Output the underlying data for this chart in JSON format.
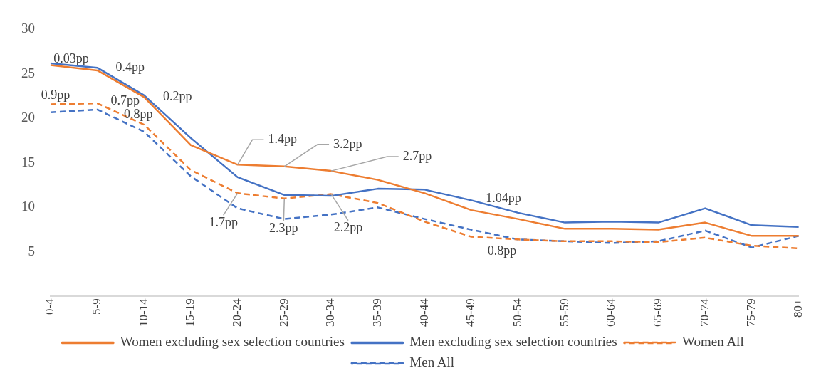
{
  "chart_data": {
    "type": "line",
    "categories": [
      "0-4",
      "5-9",
      "10-14",
      "15-19",
      "20-24",
      "25-29",
      "30-34",
      "35-39",
      "40-44",
      "45-49",
      "50-54",
      "55-59",
      "60-64",
      "65-69",
      "70-74",
      "75-79",
      "80+"
    ],
    "series": [
      {
        "name": "Women excluding sex selection countries",
        "color": "#ed7d31",
        "line_style": "solid",
        "values": [
          26.0,
          25.4,
          22.4,
          17.0,
          14.8,
          14.6,
          14.1,
          13.1,
          11.6,
          9.7,
          8.7,
          7.6,
          7.6,
          7.5,
          8.3,
          6.8,
          6.8
        ]
      },
      {
        "name": "Men excluding sex selection countries",
        "color": "#4472c4",
        "line_style": "solid",
        "values": [
          26.2,
          25.7,
          22.6,
          17.8,
          13.4,
          11.4,
          11.3,
          12.1,
          12.0,
          10.8,
          9.4,
          8.3,
          8.4,
          8.3,
          9.9,
          8.0,
          7.8
        ]
      },
      {
        "name": "Women All",
        "color": "#ed7d31",
        "line_style": "dashed",
        "values": [
          21.6,
          21.7,
          19.3,
          14.2,
          11.6,
          11.0,
          11.5,
          10.5,
          8.4,
          6.7,
          6.4,
          6.2,
          6.2,
          6.1,
          6.6,
          5.7,
          5.4
        ]
      },
      {
        "name": "Men All",
        "color": "#4472c4",
        "line_style": "dashed",
        "values": [
          20.7,
          21.0,
          18.5,
          13.5,
          9.9,
          8.7,
          9.2,
          10.0,
          8.7,
          7.5,
          6.4,
          6.2,
          6.0,
          6.2,
          7.4,
          5.5,
          6.8
        ]
      }
    ],
    "ylim": [
      0,
      30
    ],
    "yticks": [
      5,
      10,
      15,
      20,
      25,
      30
    ],
    "grid": false,
    "legend": "bottom",
    "marker": "none",
    "annotations": [
      {
        "text": "0.03pp",
        "x": "0-4",
        "y": 26.2
      },
      {
        "text": "0.4pp",
        "x": "5-9",
        "y": 25.7
      },
      {
        "text": "0.9pp",
        "x": "0-4",
        "y": 21.6
      },
      {
        "text": "0.7pp",
        "x": "5-9",
        "y": 21.7
      },
      {
        "text": "0.2pp",
        "x": "10-14",
        "y": 22.6
      },
      {
        "text": "0.8pp",
        "x": "10-14",
        "y": 19.3
      },
      {
        "text": "1.4pp",
        "x": "20-24",
        "y": 14.8
      },
      {
        "text": "3.2pp",
        "x": "25-29",
        "y": 14.6
      },
      {
        "text": "2.7pp",
        "x": "30-34",
        "y": 14.1
      },
      {
        "text": "1.7pp",
        "x": "20-24",
        "y": 11.6
      },
      {
        "text": "2.3pp",
        "x": "25-29",
        "y": 11.0
      },
      {
        "text": "2.2pp",
        "x": "30-34",
        "y": 11.5
      },
      {
        "text": "1.04pp",
        "x": "45-49",
        "y": 10.8
      },
      {
        "text": "0.8pp",
        "x": "45-49",
        "y": 6.7
      }
    ]
  }
}
